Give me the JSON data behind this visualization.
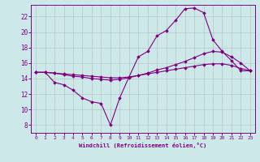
{
  "xlabel": "Windchill (Refroidissement éolien,°C)",
  "background_color": "#cce8e8",
  "line_color": "#800080",
  "grid_color": "#b0b0b0",
  "xlim": [
    -0.5,
    23.5
  ],
  "ylim": [
    7,
    23.5
  ],
  "yticks": [
    8,
    10,
    12,
    14,
    16,
    18,
    20,
    22
  ],
  "xticks": [
    0,
    1,
    2,
    3,
    4,
    5,
    6,
    7,
    8,
    9,
    10,
    11,
    12,
    13,
    14,
    15,
    16,
    17,
    18,
    19,
    20,
    21,
    22,
    23
  ],
  "line1_x": [
    0,
    1,
    2,
    3,
    4,
    5,
    6,
    7,
    8,
    9,
    10,
    11,
    12,
    13,
    14,
    15,
    16,
    17,
    18,
    19,
    20,
    21,
    22,
    23
  ],
  "line1_y": [
    14.8,
    14.8,
    13.5,
    13.2,
    12.5,
    11.5,
    11.0,
    10.8,
    8.0,
    11.5,
    14.2,
    16.8,
    17.5,
    19.5,
    20.2,
    21.5,
    23.0,
    23.1,
    22.5,
    19.0,
    17.5,
    16.3,
    15.0,
    15.0
  ],
  "line2_x": [
    0,
    1,
    2,
    3,
    4,
    5,
    6,
    7,
    8,
    9,
    10,
    11,
    12,
    13,
    14,
    15,
    16,
    17,
    18,
    19,
    20,
    21,
    22,
    23
  ],
  "line2_y": [
    14.8,
    14.8,
    14.7,
    14.6,
    14.5,
    14.4,
    14.3,
    14.2,
    14.1,
    14.1,
    14.2,
    14.4,
    14.6,
    14.8,
    15.0,
    15.2,
    15.4,
    15.6,
    15.8,
    15.9,
    15.9,
    15.7,
    15.3,
    15.0
  ],
  "line3_x": [
    0,
    1,
    2,
    3,
    4,
    5,
    6,
    7,
    8,
    9,
    10,
    11,
    12,
    13,
    14,
    15,
    16,
    17,
    18,
    19,
    20,
    21,
    22,
    23
  ],
  "line3_y": [
    14.8,
    14.8,
    14.7,
    14.5,
    14.3,
    14.2,
    14.0,
    13.9,
    13.8,
    13.9,
    14.1,
    14.4,
    14.7,
    15.1,
    15.4,
    15.8,
    16.2,
    16.7,
    17.2,
    17.5,
    17.4,
    16.8,
    16.0,
    15.0
  ],
  "figsize": [
    3.2,
    2.0
  ],
  "dpi": 100,
  "marker": "D",
  "markersize": 1.8,
  "linewidth": 0.8
}
